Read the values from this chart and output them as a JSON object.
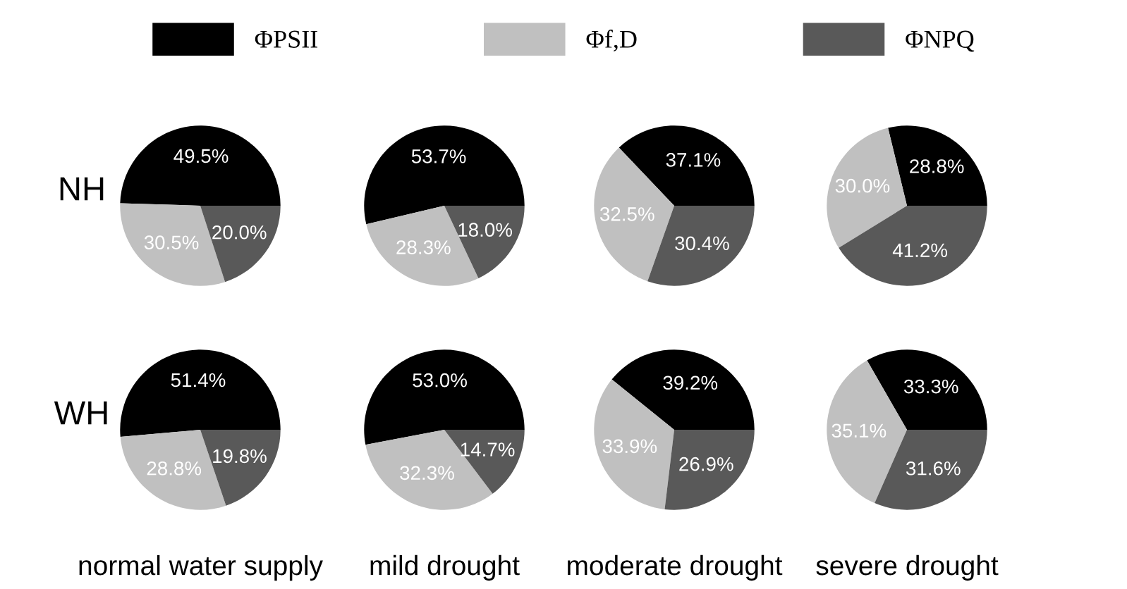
{
  "chart_data": [
    {
      "type": "pie",
      "legend": "top",
      "ylabel": "NH",
      "categories": [
        "ΦPSII",
        "Φf,D",
        "ΦNPQ"
      ],
      "values": [
        49.5,
        30.5,
        20.0
      ],
      "value_labels": [
        "49.5%",
        "30.5%",
        "20.0%"
      ],
      "colors": [
        "#000000",
        "#c0c0c0",
        "#595959"
      ]
    },
    {
      "type": "pie",
      "categories": [
        null,
        null,
        null
      ],
      "values": [
        53.7,
        28.3,
        18.0
      ],
      "value_labels": [
        "53.7%",
        "28.3%",
        "18.0%"
      ],
      "colors": [
        "#000000",
        "#c0c0c0",
        "#595959"
      ]
    },
    {
      "type": "pie",
      "categories": [
        null,
        null,
        null
      ],
      "values": [
        37.1,
        32.5,
        30.4
      ],
      "value_labels": [
        "37.1%",
        "32.5%",
        "30.4%"
      ],
      "colors": [
        "#000000",
        "#c0c0c0",
        "#595959"
      ]
    },
    {
      "type": "pie",
      "categories": [
        null,
        null,
        null
      ],
      "values": [
        28.8,
        30.0,
        41.2
      ],
      "value_labels": [
        "28.8%",
        "30.0%",
        "41.2%"
      ],
      "colors": [
        "#000000",
        "#c0c0c0",
        "#595959"
      ]
    },
    {
      "type": "pie",
      "ylabel": "WH",
      "xlabel": "normal water supply",
      "categories": [
        null,
        null,
        null
      ],
      "values": [
        51.4,
        28.8,
        19.8
      ],
      "value_labels": [
        "51.4%",
        "28.8%",
        "19.8%"
      ],
      "colors": [
        "#000000",
        "#c0c0c0",
        "#595959"
      ]
    },
    {
      "type": "pie",
      "xlabel": "mild drought",
      "categories": [
        null,
        null,
        null
      ],
      "values": [
        53.0,
        32.3,
        14.7
      ],
      "value_labels": [
        "53.0%",
        "32.3%",
        "14.7%"
      ],
      "colors": [
        "#000000",
        "#c0c0c0",
        "#595959"
      ]
    },
    {
      "type": "pie",
      "xlabel": "moderate drought",
      "categories": [
        null,
        null,
        null
      ],
      "values": [
        39.2,
        33.9,
        26.9
      ],
      "value_labels": [
        "39.2%",
        "33.9%",
        "26.9%"
      ],
      "colors": [
        "#000000",
        "#c0c0c0",
        "#595959"
      ]
    },
    {
      "type": "pie",
      "xlabel": "severe drought",
      "categories": [
        null,
        null,
        null
      ],
      "values": [
        33.3,
        35.1,
        31.6
      ],
      "value_labels": [
        "33.3%",
        "35.1%",
        "31.6%"
      ],
      "colors": [
        "#000000",
        "#c0c0c0",
        "#595959"
      ]
    }
  ]
}
